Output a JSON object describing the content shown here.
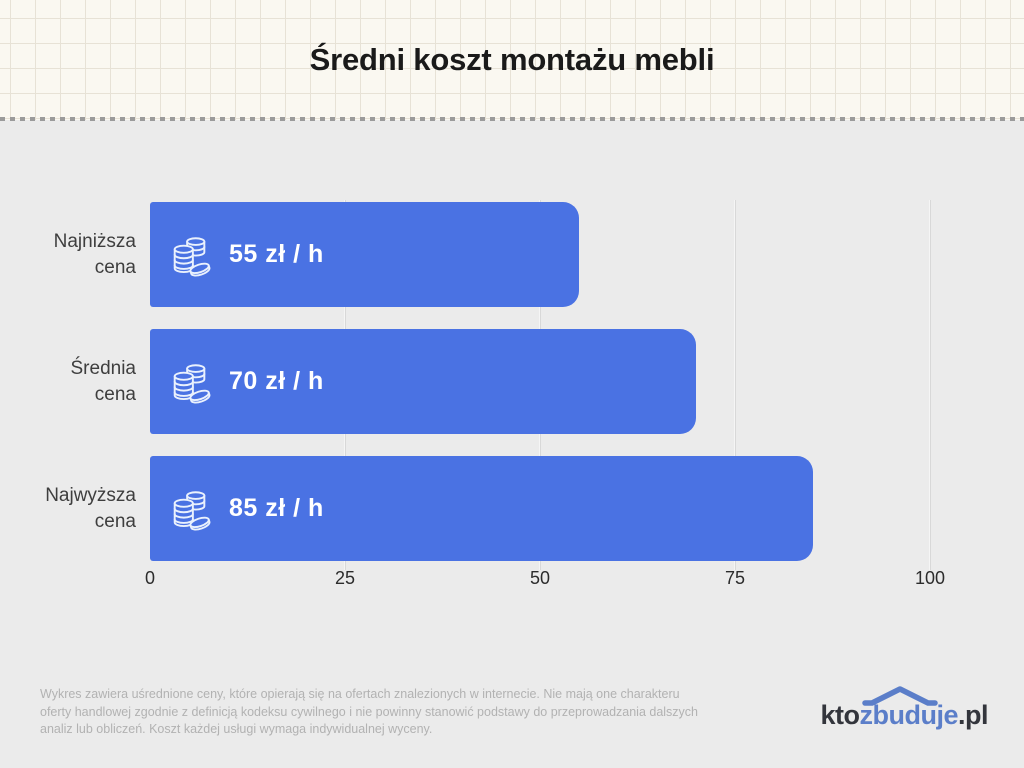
{
  "header": {
    "title": "Średni koszt montażu mebli"
  },
  "chart_data": {
    "type": "bar",
    "orientation": "horizontal",
    "title": "Średni koszt montażu mebli",
    "categories": [
      "Najniższa\ncena",
      "Średnia\ncena",
      "Najwyższa\ncena"
    ],
    "values": [
      55,
      70,
      85
    ],
    "value_labels": [
      "55 zł / h",
      "70 zł / h",
      "85 zł / h"
    ],
    "unit": "zł / h",
    "x_ticks": [
      0,
      25,
      50,
      75,
      100
    ],
    "xlim": [
      0,
      100
    ],
    "grid": "vertical",
    "bar_color": "#4A72E3",
    "bar_icon": "coins-icon"
  },
  "footer": {
    "disclaimer": "Wykres zawiera uśrednione ceny, które opierają się na ofertach znalezionych w internecie. Nie mają one charakteru oferty handlowej zgodnie z definicją kodeksu cywilnego i nie powinny stanowić podstawy do przeprowadzania dalszych analiz lub obliczeń. Koszt każdej usługi wymaga indywidualnej wyceny.",
    "logo": {
      "prefix": "kto",
      "middle": "zbuduje",
      "suffix": ".pl"
    }
  },
  "colors": {
    "header_bg": "#FAF8F1",
    "header_grid": "#E7E2D6",
    "dash": "#9B9B9B",
    "body_bg": "#EBEBEB",
    "bar": "#4A72E3",
    "bar_text": "#FFFFFF",
    "title": "#1A1A1A",
    "category_label": "#3E3E3E",
    "tick_label": "#2C2C2C",
    "gridline": "#D8D8D8",
    "disclaimer": "#B2B2B2",
    "logo_dark": "#33353C",
    "logo_blue": "#5B7EC9"
  }
}
